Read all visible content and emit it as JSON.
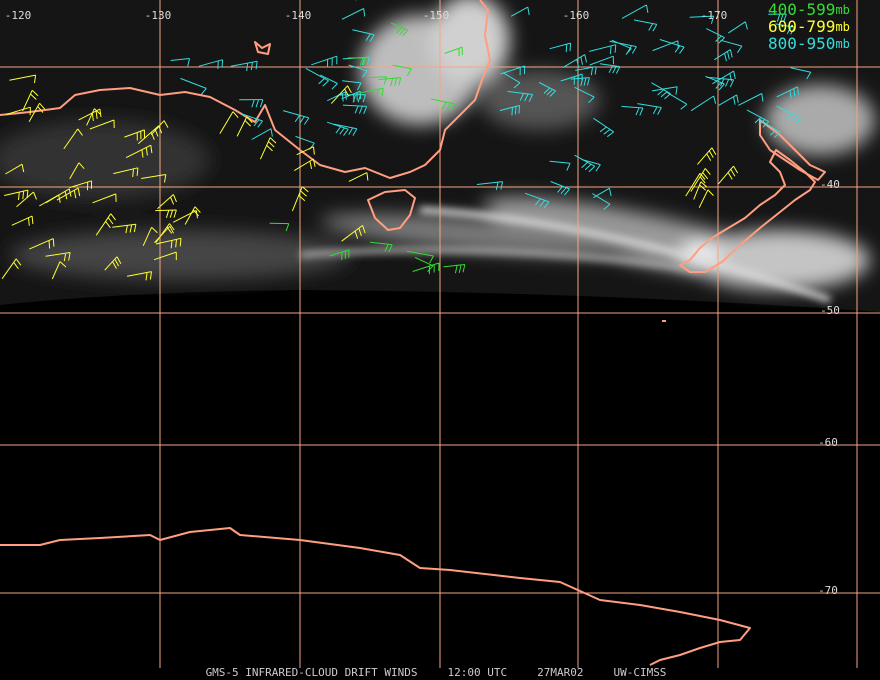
{
  "longitude_labels": [
    "-120",
    "-130",
    "-140",
    "-150",
    "-160",
    "-170"
  ],
  "latitude_labels": [
    "-40",
    "-50",
    "-60",
    "-70"
  ],
  "legend": [
    {
      "range": "400-599",
      "unit": "mb",
      "color": "#33dd33"
    },
    {
      "range": "600-799",
      "unit": "mb",
      "color": "#ffff33"
    },
    {
      "range": "800-950",
      "unit": "mb",
      "color": "#33dddd"
    }
  ],
  "footer": {
    "satellite": "GMS-5 INFRARED-CLOUD DRIFT WINDS",
    "time": "12:00 UTC",
    "date": "27MAR02",
    "source": "UW-CIMSS"
  }
}
